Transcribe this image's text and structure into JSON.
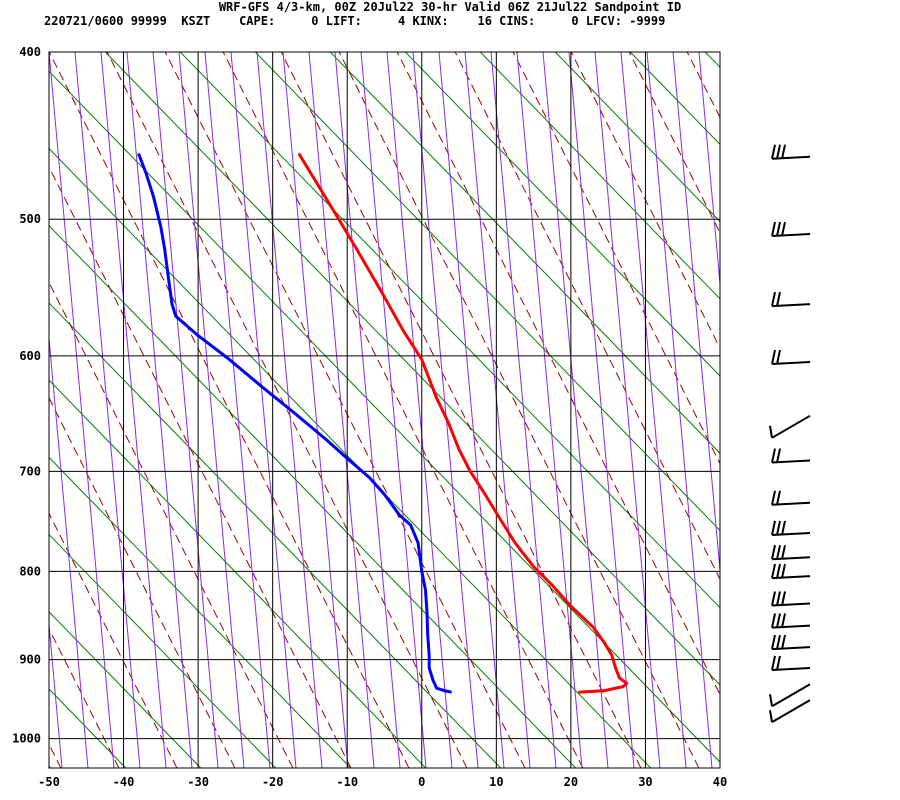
{
  "header": {
    "title": "WRF-GFS 4/3-km, 00Z 20Jul22 30-hr Valid 06Z 21Jul22 Sandpoint ID",
    "info": "220721/0600 99999  KSZT    CAPE:     0 LIFT:     4 KINX:    16 CINS:     0 LFCV: -9999"
  },
  "chart_data": {
    "type": "line",
    "title": "WRF-GFS 4/3-km, 00Z 20Jul22 30-hr Valid 06Z 21Jul22 Sandpoint ID",
    "xlabel": "",
    "ylabel": "",
    "x_axis": {
      "ticks": [
        -50,
        -40,
        -30,
        -20,
        -10,
        0,
        10,
        20,
        30,
        40
      ],
      "range": [
        -50,
        40
      ]
    },
    "y_axis": {
      "scale": "log-pressure",
      "ticks": [
        400,
        500,
        600,
        700,
        800,
        900,
        1000
      ],
      "range": [
        400,
        1040
      ]
    },
    "grid": true,
    "series": [
      {
        "color": "#ff0000",
        "points": [
          [
            21.0,
            940
          ],
          [
            24.5,
            938
          ],
          [
            27.0,
            933
          ],
          [
            27.5,
            929
          ],
          [
            26.5,
            922
          ],
          [
            26.0,
            910
          ],
          [
            25.5,
            895
          ],
          [
            24.5,
            880
          ],
          [
            23.0,
            862
          ],
          [
            20.0,
            838
          ],
          [
            17.5,
            815
          ],
          [
            15.0,
            795
          ],
          [
            12.5,
            770
          ],
          [
            10.5,
            746
          ],
          [
            8.5,
            722
          ],
          [
            6.5,
            700
          ],
          [
            5.0,
            680
          ],
          [
            3.5,
            655
          ],
          [
            2.0,
            635
          ],
          [
            0.0,
            603
          ],
          [
            -2.5,
            580
          ],
          [
            -5.5,
            550
          ],
          [
            -9.0,
            518
          ],
          [
            -11.5,
            497
          ],
          [
            -16.5,
            458
          ]
        ]
      },
      {
        "color": "#0000ff",
        "points": [
          [
            4.0,
            940
          ],
          [
            3.0,
            938
          ],
          [
            2.0,
            935
          ],
          [
            1.5,
            925
          ],
          [
            1.0,
            910
          ],
          [
            1.0,
            895
          ],
          [
            0.8,
            870
          ],
          [
            0.7,
            845
          ],
          [
            0.5,
            820
          ],
          [
            0.0,
            800
          ],
          [
            -0.5,
            770
          ],
          [
            -1.5,
            752
          ],
          [
            -3.0,
            742
          ],
          [
            -5.0,
            722
          ],
          [
            -7.0,
            706
          ],
          [
            -10.0,
            688
          ],
          [
            -13.0,
            670
          ],
          [
            -17.0,
            648
          ],
          [
            -21.5,
            625
          ],
          [
            -26.0,
            602
          ],
          [
            -30.0,
            584
          ],
          [
            -33.0,
            569
          ],
          [
            -33.5,
            560
          ],
          [
            -34.0,
            540
          ],
          [
            -34.5,
            520
          ],
          [
            -35.0,
            505
          ],
          [
            -36.0,
            485
          ],
          [
            -37.0,
            470
          ],
          [
            -38.0,
            458
          ]
        ]
      }
    ],
    "isotherms": [
      -50,
      -40,
      -30,
      -20,
      -10,
      0,
      10,
      20,
      30,
      40
    ],
    "wind_barbs": [
      {
        "pressure": 460,
        "type": "flag3"
      },
      {
        "pressure": 510,
        "type": "flag3"
      },
      {
        "pressure": 560,
        "type": "flag2"
      },
      {
        "pressure": 605,
        "type": "flag2"
      },
      {
        "pressure": 650,
        "type": "flag1"
      },
      {
        "pressure": 690,
        "type": "flag2"
      },
      {
        "pressure": 730,
        "type": "flag2"
      },
      {
        "pressure": 760,
        "type": "flag3"
      },
      {
        "pressure": 785,
        "type": "flag3"
      },
      {
        "pressure": 805,
        "type": "flag3"
      },
      {
        "pressure": 835,
        "type": "flag3"
      },
      {
        "pressure": 860,
        "type": "flag3"
      },
      {
        "pressure": 885,
        "type": "flag3"
      },
      {
        "pressure": 910,
        "type": "flag2"
      },
      {
        "pressure": 930,
        "type": "flag1"
      },
      {
        "pressure": 950,
        "type": "flag1"
      }
    ],
    "colors": {
      "temperature": "#ff0000",
      "dewpoint": "#0000ff",
      "isotherm": "#000000",
      "dry_adiabat": "#008000",
      "moist_adiabat": "#a00000",
      "mixing_ratio": "#8a2be2"
    }
  }
}
